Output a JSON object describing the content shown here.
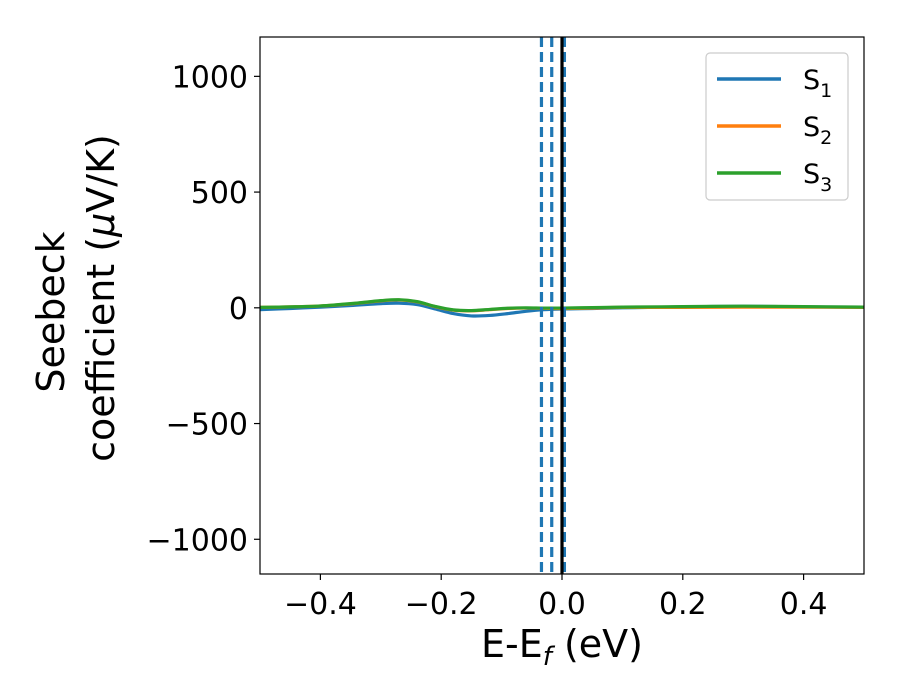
{
  "chart_data": {
    "type": "line",
    "xlabel_main": "E-E",
    "xlabel_sub": "f",
    "xlabel_unit": " (eV)",
    "ylabel_line1": "Seebeck",
    "ylabel_line2_a": "coefficient  (",
    "ylabel_line2_mu": "μ",
    "ylabel_line2_b": "V/K)",
    "xlim": [
      -0.5,
      0.5
    ],
    "ylim": [
      -1150,
      1170
    ],
    "x_ticks": [
      -0.4,
      -0.2,
      0.0,
      0.2,
      0.4
    ],
    "x_tick_labels": [
      "−0.4",
      "−0.2",
      "0.0",
      "0.2",
      "0.4"
    ],
    "y_ticks": [
      -1000,
      -500,
      0,
      500,
      1000
    ],
    "y_tick_labels": [
      "−1000",
      "−500",
      "0",
      "500",
      "1000"
    ],
    "legend_position": "top-right",
    "grid": false,
    "series": [
      {
        "name_base": "S",
        "name_sub": "1",
        "color": "#1f77b4",
        "points": [
          [
            -0.5,
            -8
          ],
          [
            -0.45,
            -3
          ],
          [
            -0.4,
            3
          ],
          [
            -0.35,
            10
          ],
          [
            -0.3,
            18
          ],
          [
            -0.27,
            20
          ],
          [
            -0.24,
            14
          ],
          [
            -0.21,
            -5
          ],
          [
            -0.18,
            -25
          ],
          [
            -0.15,
            -35
          ],
          [
            -0.12,
            -33
          ],
          [
            -0.09,
            -25
          ],
          [
            -0.06,
            -15
          ],
          [
            -0.03,
            -8
          ],
          [
            0.0,
            -5
          ],
          [
            0.05,
            -3
          ],
          [
            0.1,
            0
          ],
          [
            0.2,
            4
          ],
          [
            0.3,
            7
          ],
          [
            0.4,
            4
          ],
          [
            0.5,
            3
          ]
        ]
      },
      {
        "name_base": "S",
        "name_sub": "2",
        "color": "#ff7f0e",
        "points": [
          [
            -0.5,
            2
          ],
          [
            -0.45,
            4
          ],
          [
            -0.4,
            8
          ],
          [
            -0.35,
            17
          ],
          [
            -0.3,
            30
          ],
          [
            -0.27,
            34
          ],
          [
            -0.24,
            26
          ],
          [
            -0.21,
            5
          ],
          [
            -0.18,
            -10
          ],
          [
            -0.15,
            -13
          ],
          [
            -0.12,
            -8
          ],
          [
            -0.09,
            -3
          ],
          [
            -0.06,
            -1
          ],
          [
            -0.03,
            -2
          ],
          [
            0.0,
            -3
          ],
          [
            0.05,
            -1
          ],
          [
            0.1,
            2
          ],
          [
            0.2,
            2
          ],
          [
            0.3,
            3
          ],
          [
            0.4,
            3
          ],
          [
            0.5,
            2
          ]
        ]
      },
      {
        "name_base": "S",
        "name_sub": "3",
        "color": "#2ca02c",
        "points": [
          [
            -0.5,
            2
          ],
          [
            -0.45,
            4
          ],
          [
            -0.4,
            8
          ],
          [
            -0.35,
            18
          ],
          [
            -0.3,
            31
          ],
          [
            -0.27,
            35
          ],
          [
            -0.24,
            27
          ],
          [
            -0.21,
            6
          ],
          [
            -0.18,
            -9
          ],
          [
            -0.15,
            -12
          ],
          [
            -0.12,
            -7
          ],
          [
            -0.09,
            -2
          ],
          [
            -0.06,
            0
          ],
          [
            -0.03,
            -1
          ],
          [
            0.0,
            -1
          ],
          [
            0.05,
            1
          ],
          [
            0.1,
            3
          ],
          [
            0.2,
            5
          ],
          [
            0.3,
            7
          ],
          [
            0.4,
            5
          ],
          [
            0.5,
            3
          ]
        ]
      }
    ],
    "vlines": [
      {
        "x": -0.034,
        "color": "#1f77b4",
        "style": "dashed"
      },
      {
        "x": -0.017,
        "color": "#1f77b4",
        "style": "dashed"
      },
      {
        "x": 0.004,
        "color": "#1f77b4",
        "style": "dashed"
      },
      {
        "x": 0.0,
        "color": "#000000",
        "style": "solid"
      }
    ]
  }
}
